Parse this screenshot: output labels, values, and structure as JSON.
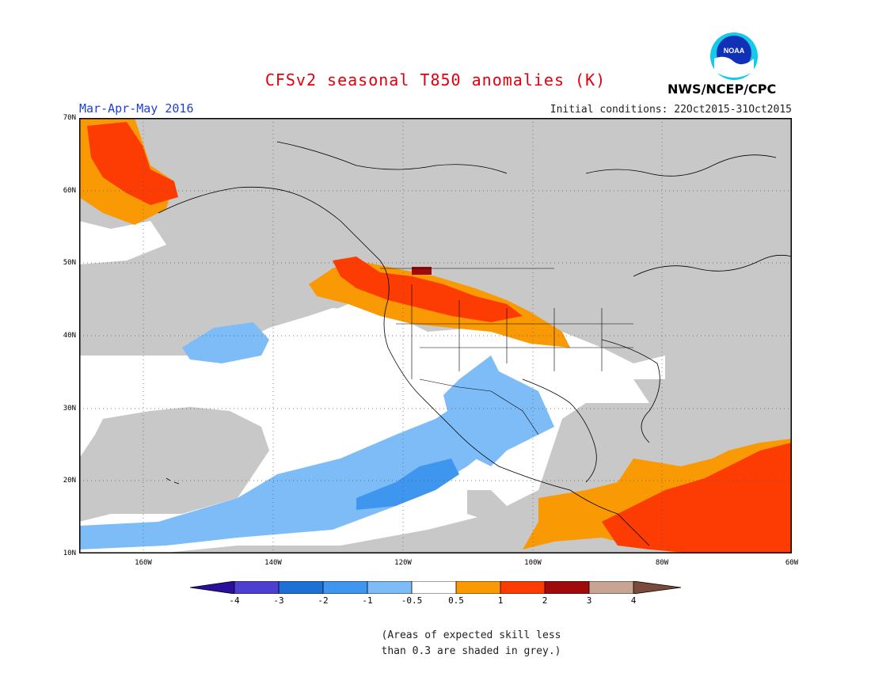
{
  "title": "CFSv2 seasonal T850 anomalies (K)",
  "season": "Mar-Apr-May 2016",
  "initial_conditions": "Initial conditions: 22Oct2015-31Oct2015",
  "agency": "NWS/NCEP/CPC",
  "logo_text": "NOAA",
  "lat_labels": [
    "70N",
    "60N",
    "50N",
    "40N",
    "30N",
    "20N",
    "10N"
  ],
  "lon_labels": [
    "160W",
    "140W",
    "120W",
    "100W",
    "80W",
    "60W"
  ],
  "colorbar": {
    "labels": [
      "-4",
      "-3",
      "-2",
      "-1",
      "-0.5",
      "0.5",
      "1",
      "2",
      "3",
      "4"
    ],
    "colors": [
      "#2a0f9c",
      "#4d3fd0",
      "#1e6fd6",
      "#3f96ee",
      "#7dbcf7",
      "#ffffff",
      "#f99a05",
      "#fc3c03",
      "#a10a0a",
      "#c9a394",
      "#7a4a3a"
    ]
  },
  "footnote_line1": "(Areas of expected skill less",
  "footnote_line2": "than 0.3 are shaded in grey.)"
}
